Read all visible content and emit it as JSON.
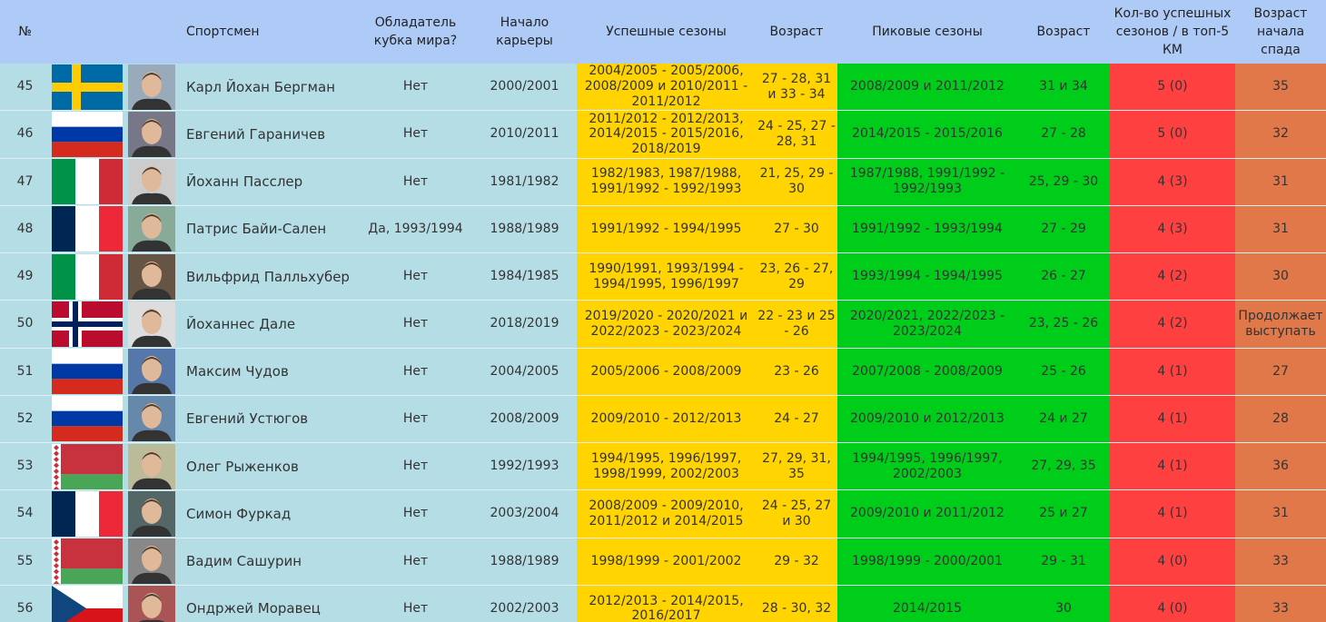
{
  "header": {
    "columns": [
      "№",
      "Спортсмен",
      "Обладатель кубка мира?",
      "Начало карьеры",
      "Успешные сезоны",
      "Возраст",
      "Пиковые сезоны",
      "Возраст",
      "Кол-во успешных сезонов / в топ-5 КМ",
      "Возраст начала спада"
    ]
  },
  "rows": [
    [
      45,
      "Карл Йохан Бергман",
      "Нет",
      "2000/2001",
      "2004/2005 - 2005/2006, 2008/2009 и 2010/2011 - 2011/2012",
      "27 - 28, 31 и 33 - 34",
      "2008/2009 и 2011/2012",
      "31 и 34",
      "5 (0)",
      "35"
    ],
    [
      46,
      "Евгений Гараничев",
      "Нет",
      "2010/2011",
      "2011/2012 - 2012/2013, 2014/2015 - 2015/2016, 2018/2019",
      "24 - 25, 27 - 28, 31",
      "2014/2015 - 2015/2016",
      "27 - 28",
      "5 (0)",
      "32"
    ],
    [
      47,
      "Йоханн Пасслер",
      "Нет",
      "1981/1982",
      "1982/1983, 1987/1988, 1991/1992 - 1992/1993",
      "21, 25, 29 - 30",
      "1987/1988, 1991/1992 - 1992/1993",
      "25, 29 - 30",
      "4 (3)",
      "31"
    ],
    [
      48,
      "Патрис Байи-Сален",
      "Да, 1993/1994",
      "1988/1989",
      "1991/1992 - 1994/1995",
      "27 - 30",
      "1991/1992 - 1993/1994",
      "27 - 29",
      "4 (3)",
      "31"
    ],
    [
      49,
      "Вильфрид Палльхубер",
      "Нет",
      "1984/1985",
      "1990/1991, 1993/1994 - 1994/1995, 1996/1997",
      "23, 26 - 27, 29",
      "1993/1994 - 1994/1995",
      "26 - 27",
      "4 (2)",
      "30"
    ],
    [
      50,
      "Йоханнес Дале",
      "Нет",
      "2018/2019",
      "2019/2020 - 2020/2021 и 2022/2023 - 2023/2024",
      "22 - 23 и 25 - 26",
      "2020/2021, 2022/2023 - 2023/2024",
      "23, 25 - 26",
      "4 (2)",
      "Продолжает выступать"
    ],
    [
      51,
      "Максим Чудов",
      "Нет",
      "2004/2005",
      "2005/2006 - 2008/2009",
      "23 - 26",
      "2007/2008 - 2008/2009",
      "25 - 26",
      "4 (1)",
      "27"
    ],
    [
      52,
      "Евгений Устюгов",
      "Нет",
      "2008/2009",
      "2009/2010 - 2012/2013",
      "24 - 27",
      "2009/2010 и 2012/2013",
      "24 и 27",
      "4 (1)",
      "28"
    ],
    [
      53,
      "Олег Рыженков",
      "Нет",
      "1992/1993",
      "1994/1995, 1996/1997, 1998/1999, 2002/2003",
      "27, 29, 31, 35",
      "1994/1995, 1996/1997, 2002/2003",
      "27, 29, 35",
      "4 (1)",
      "36"
    ],
    [
      54,
      "Симон Фуркад",
      "Нет",
      "2003/2004",
      "2008/2009 - 2009/2010, 2011/2012 и 2014/2015",
      "24 - 25, 27 и 30",
      "2009/2010 и 2011/2012",
      "25 и 27",
      "4 (1)",
      "31"
    ],
    [
      55,
      "Вадим Сашурин",
      "Нет",
      "1988/1989",
      "1998/1999 - 2001/2002",
      "29 - 32",
      "1998/1999 - 2000/2001",
      "29 - 31",
      "4 (0)",
      "33"
    ],
    [
      56,
      "Ондржей Моравец",
      "Нет",
      "2002/2003",
      "2012/2013 - 2014/2015, 2016/2017",
      "28 - 30, 32",
      "2014/2015",
      "30",
      "4 (0)",
      "33"
    ]
  ]
}
